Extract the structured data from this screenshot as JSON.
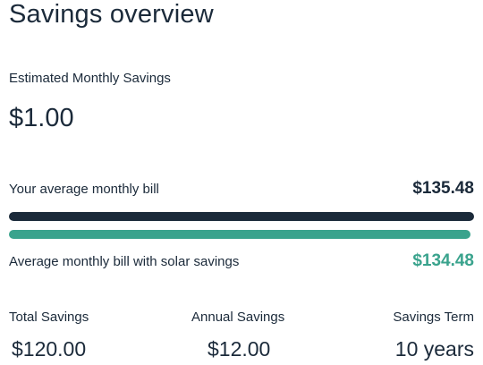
{
  "header": {
    "title": "Savings overview"
  },
  "estimated": {
    "label": "Estimated Monthly Savings",
    "value": "$1.00"
  },
  "bills": {
    "current": {
      "label": "Your average monthly bill",
      "value": "$135.48",
      "amount": 135.48,
      "color": "#1b2a3a"
    },
    "solar": {
      "label": "Average monthly bill with solar savings",
      "value": "$134.48",
      "amount": 134.48,
      "color": "#3aa38d"
    }
  },
  "stats": {
    "total": {
      "label": "Total Savings",
      "value": "$120.00"
    },
    "annual": {
      "label": "Annual Savings",
      "value": "$12.00"
    },
    "term": {
      "label": "Savings Term",
      "value": "10 years"
    }
  }
}
